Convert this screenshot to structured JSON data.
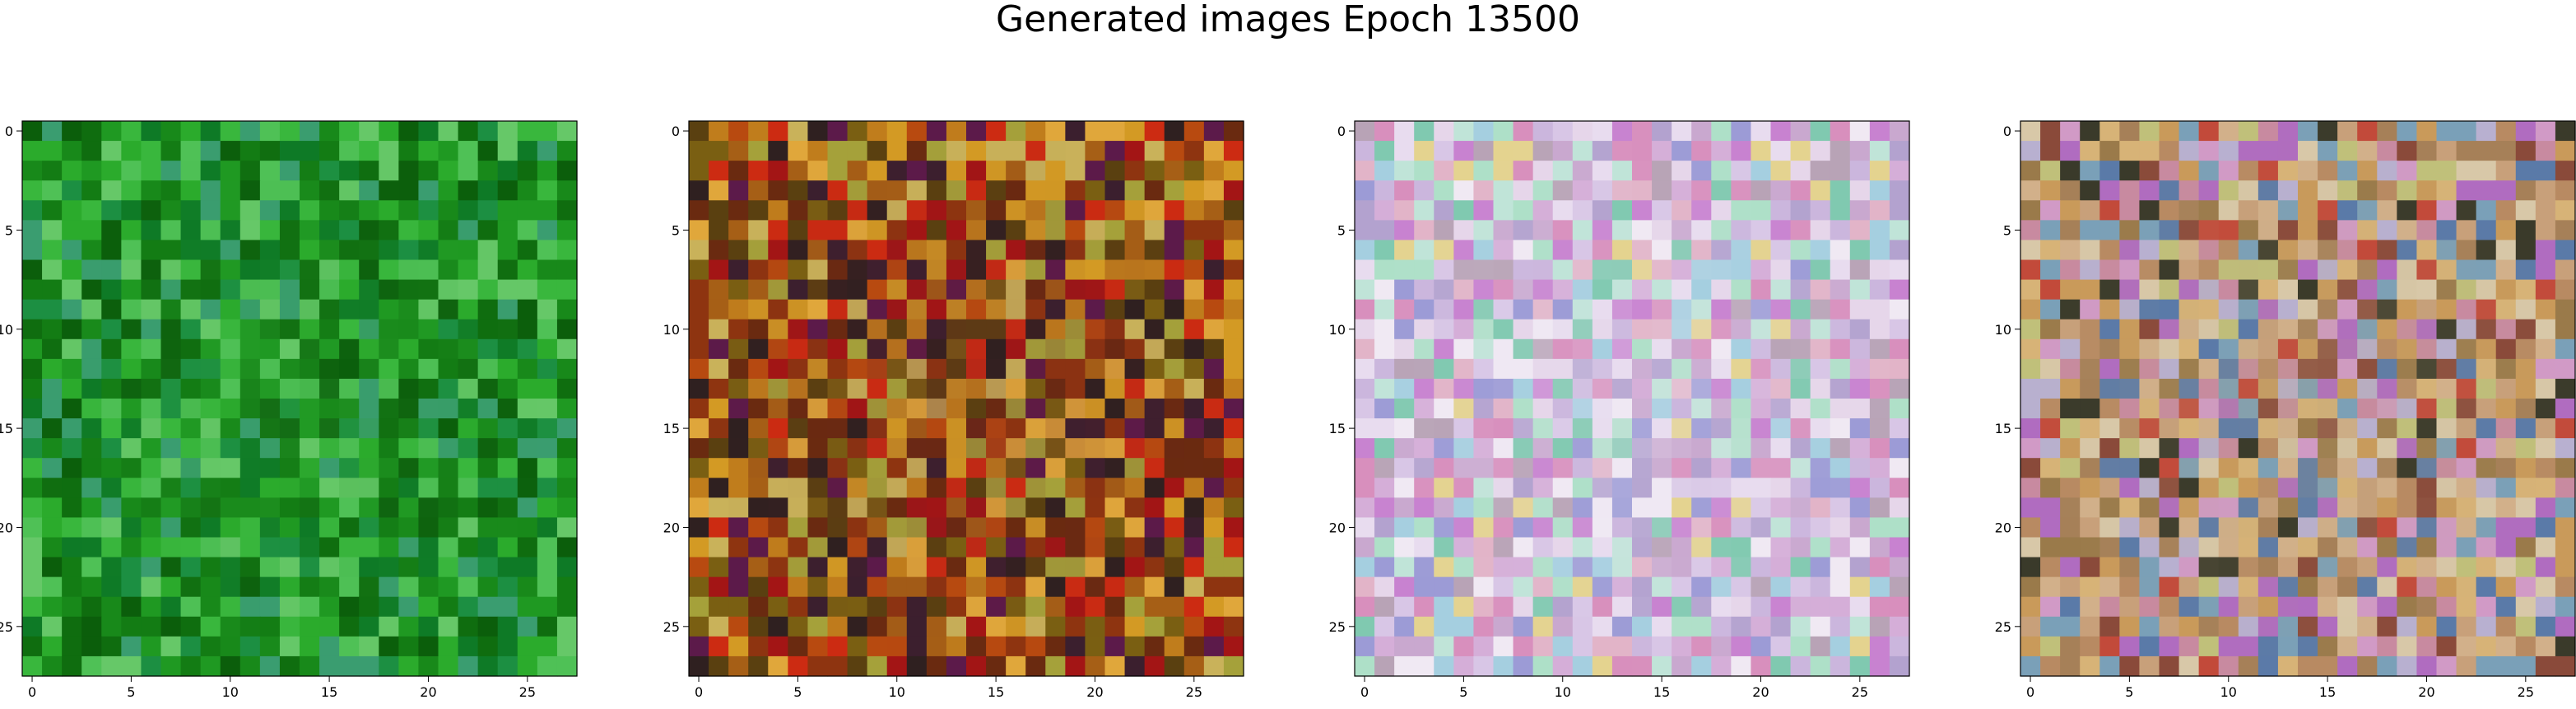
{
  "figure": {
    "title": "Generated images Epoch 13500",
    "grid_size": 28,
    "ticks": [
      0,
      5,
      10,
      15,
      20,
      25
    ]
  },
  "panels": [
    {
      "name": "generated-image-1",
      "palette": [
        "#0b5e0b",
        "#0f6d0f",
        "#137c14",
        "#18891a",
        "#1f9922",
        "#2bab2c",
        "#39b73d",
        "#4fc156",
        "#66c868",
        "#1c8f42",
        "#3a9d70",
        "#0e7a26"
      ],
      "bias": [
        0,
        1,
        2,
        3,
        4,
        5,
        6,
        7,
        8,
        9,
        10,
        11
      ],
      "center": "#2e9e33"
    },
    {
      "name": "generated-image-2",
      "palette": [
        "#a65f16",
        "#c07d1c",
        "#d39a24",
        "#b84a10",
        "#8e3410",
        "#6a2a10",
        "#a31515",
        "#cc2b12",
        "#7a5f12",
        "#a5a13a",
        "#5a4010",
        "#3b1f2e",
        "#5c1a4a",
        "#c9b25a",
        "#e0a73b",
        "#2f2020"
      ],
      "bias": [
        0,
        1,
        2,
        3,
        4,
        5,
        6,
        7,
        8,
        9,
        10,
        11,
        12,
        13,
        14,
        15
      ],
      "center": "#6a1d2a"
    },
    {
      "name": "generated-image-3",
      "palette": [
        "#d8c6e6",
        "#e6d6ea",
        "#cbb6dd",
        "#c9a8cf",
        "#e8dcef",
        "#f0e9f3",
        "#b3a2cf",
        "#d5aed8",
        "#aee0c8",
        "#c0e4d8",
        "#e2b4c8",
        "#9c9bd6",
        "#b8a3b6",
        "#a5cfe0",
        "#d88fbd",
        "#e4d38f",
        "#80c9b0",
        "#c882d0"
      ],
      "bias": [
        0,
        1,
        2,
        3,
        4,
        5,
        6,
        7,
        8,
        9,
        10,
        11,
        12,
        13,
        14,
        15,
        16,
        17
      ],
      "center": "#e9e4f1"
    },
    {
      "name": "generated-image-4",
      "palette": [
        "#c8a07a",
        "#d2b08a",
        "#b88a62",
        "#c99a5a",
        "#d7b377",
        "#a68058",
        "#c88aa0",
        "#d19ac6",
        "#b06cc0",
        "#9a7a4a",
        "#c0c07a",
        "#7aa0b8",
        "#5a7aa8",
        "#3a3a2a",
        "#8a4a3a",
        "#c24a3a",
        "#d8c8a8",
        "#b8b0d0"
      ],
      "bias": [
        0,
        1,
        2,
        3,
        4,
        5,
        6,
        7,
        8,
        9,
        10,
        11,
        12,
        13,
        14,
        15,
        16,
        17
      ],
      "center": "#b8a27a"
    }
  ]
}
